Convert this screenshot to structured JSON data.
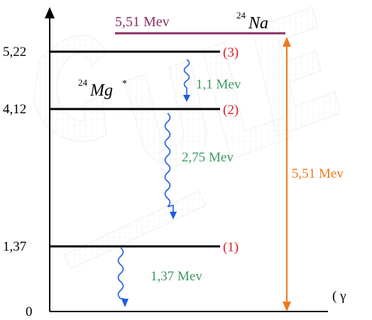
{
  "colors": {
    "level_line": "#000000",
    "na_line": "#8B2F63",
    "na_text": "#8B2F63",
    "level_number": "#e31b23",
    "gamma_arrow": "#1e5ae6",
    "gamma_text": "#3c9a5f",
    "total_arrow": "#f07a1a",
    "axis": "#000000",
    "watermark": "#dcdcdc"
  },
  "axis": {
    "zero_label": "0",
    "gamma_label": "( γ"
  },
  "levels": [
    {
      "energy_label": "5,22",
      "number_label": "(3)"
    },
    {
      "energy_label": "4,12",
      "number_label": "(2)"
    },
    {
      "energy_label": "1,37",
      "number_label": "(1)"
    }
  ],
  "sodium": {
    "energy_text": "5,51 Mev",
    "mass_number": "24",
    "symbol": "Na"
  },
  "magnesium": {
    "mass_number": "24",
    "symbol": "Mg",
    "excited_mark": "*"
  },
  "transitions": [
    {
      "energy_text": "1,1 Mev"
    },
    {
      "energy_text": "2,75 Mev"
    },
    {
      "energy_text": "1,37 Mev"
    }
  ],
  "total_transition": {
    "energy_text": "5,51 Mev"
  }
}
